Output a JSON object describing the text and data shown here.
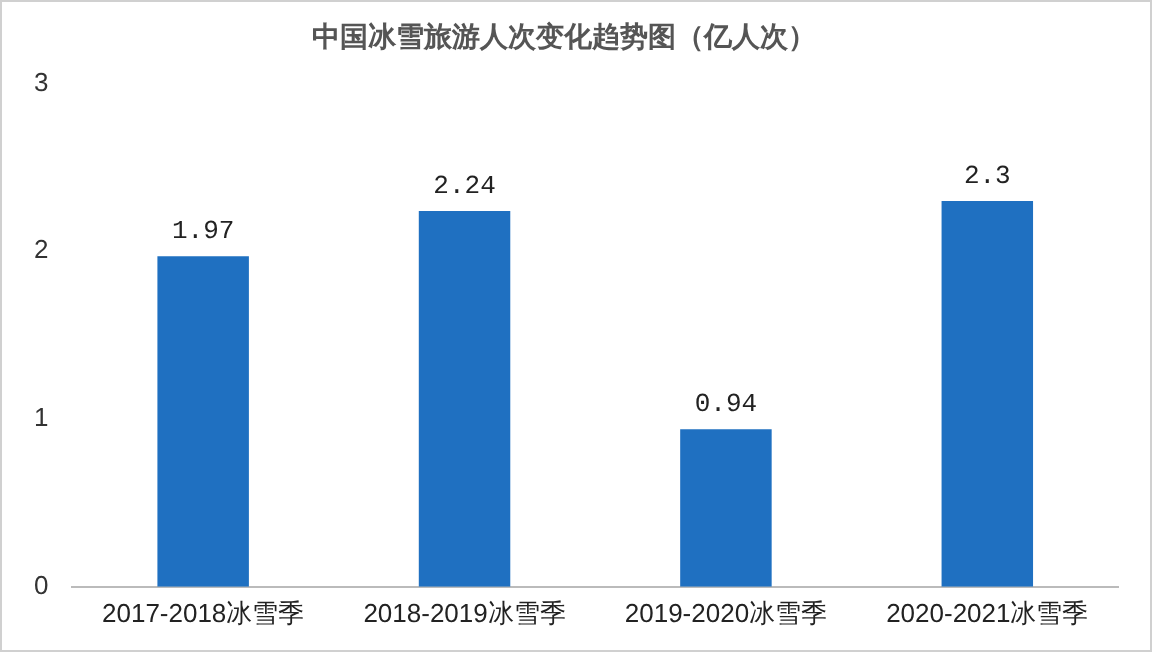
{
  "chart_data": {
    "type": "bar",
    "title": "中国冰雪旅游人次变化趋势图（亿人次）",
    "categories": [
      "2017-2018冰雪季",
      "2018-2019冰雪季",
      "2019-2020冰雪季",
      "2020-2021冰雪季"
    ],
    "values": [
      1.97,
      2.24,
      0.94,
      2.3
    ],
    "color": "#1f70c1",
    "ylim": [
      0,
      3
    ],
    "yticks": [
      0,
      1,
      2,
      3
    ],
    "grid": false,
    "data_labels": true
  }
}
